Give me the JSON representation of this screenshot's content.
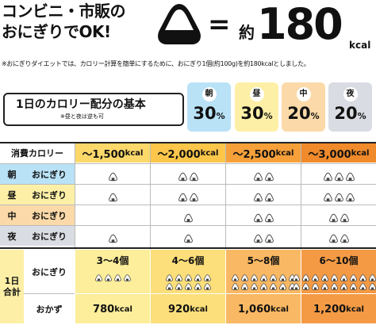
{
  "header": {
    "line1": "コンビニ・市販の",
    "line2": "おにぎりでOK!",
    "equals": "=",
    "yaku": "約",
    "big_number": "180",
    "big_unit": "kcal",
    "note": "※おにぎりダイエットでは、カロリー計算を簡単にするために、おにぎり1個(約100g)を約180kcalとしました。"
  },
  "ratio": {
    "title": "1日のカロリー配分の基本",
    "subtitle": "※昼と夜は逆も可",
    "items": [
      {
        "label": "朝",
        "value": "30",
        "unit": "%",
        "color": "#b9e2f6"
      },
      {
        "label": "昼",
        "value": "30",
        "unit": "%",
        "color": "#fdf0a6"
      },
      {
        "label": "中",
        "value": "20",
        "unit": "%",
        "color": "#fbd9a8"
      },
      {
        "label": "夜",
        "value": "20",
        "unit": "%",
        "color": "#d9dce2"
      }
    ]
  },
  "table": {
    "corner": "消費カロリー",
    "columns": [
      {
        "value": "〜1,500",
        "unit": "kcal",
        "color": "#fcd86a"
      },
      {
        "value": "〜2,000",
        "unit": "kcal",
        "color": "#fbc64a"
      },
      {
        "value": "〜2,500",
        "unit": "kcal",
        "color": "#f7a03a"
      },
      {
        "value": "〜3,000",
        "unit": "kcal",
        "color": "#f08a2a"
      }
    ],
    "rows": [
      {
        "meal": "朝",
        "item": "おにぎり",
        "meal_color": "#b9e2f6",
        "counts": [
          1,
          2,
          2,
          3
        ]
      },
      {
        "meal": "昼",
        "item": "おにぎり",
        "meal_color": "#fdf0a6",
        "counts": [
          1,
          2,
          2,
          3
        ]
      },
      {
        "meal": "中",
        "item": "おにぎり",
        "meal_color": "#fbd9a8",
        "counts": [
          0,
          1,
          2,
          2
        ]
      },
      {
        "meal": "夜",
        "item": "おにぎり",
        "meal_color": "#d9dce2",
        "counts": [
          1,
          1,
          2,
          2
        ]
      }
    ],
    "total_label": "1日\n合計",
    "total_label_1": "1日",
    "total_label_2": "合計",
    "onigiri_label": "おにぎり",
    "okazu_label": "おかず",
    "totals": [
      {
        "count": "3〜4個",
        "icons": 4,
        "kcal": "780",
        "unit": "kcal",
        "color": "#fcee9a"
      },
      {
        "count": "4〜6個",
        "icons": 10,
        "kcal": "920",
        "unit": "kcal",
        "color": "#fcdf7a"
      },
      {
        "count": "5〜8個",
        "icons": 14,
        "kcal": "1,060",
        "unit": "kcal",
        "color": "#f9b863"
      },
      {
        "count": "6〜10個",
        "icons": 20,
        "kcal": "1,200",
        "unit": "kcal",
        "color": "#f49a45"
      }
    ]
  },
  "icon": "onigiri-icon"
}
